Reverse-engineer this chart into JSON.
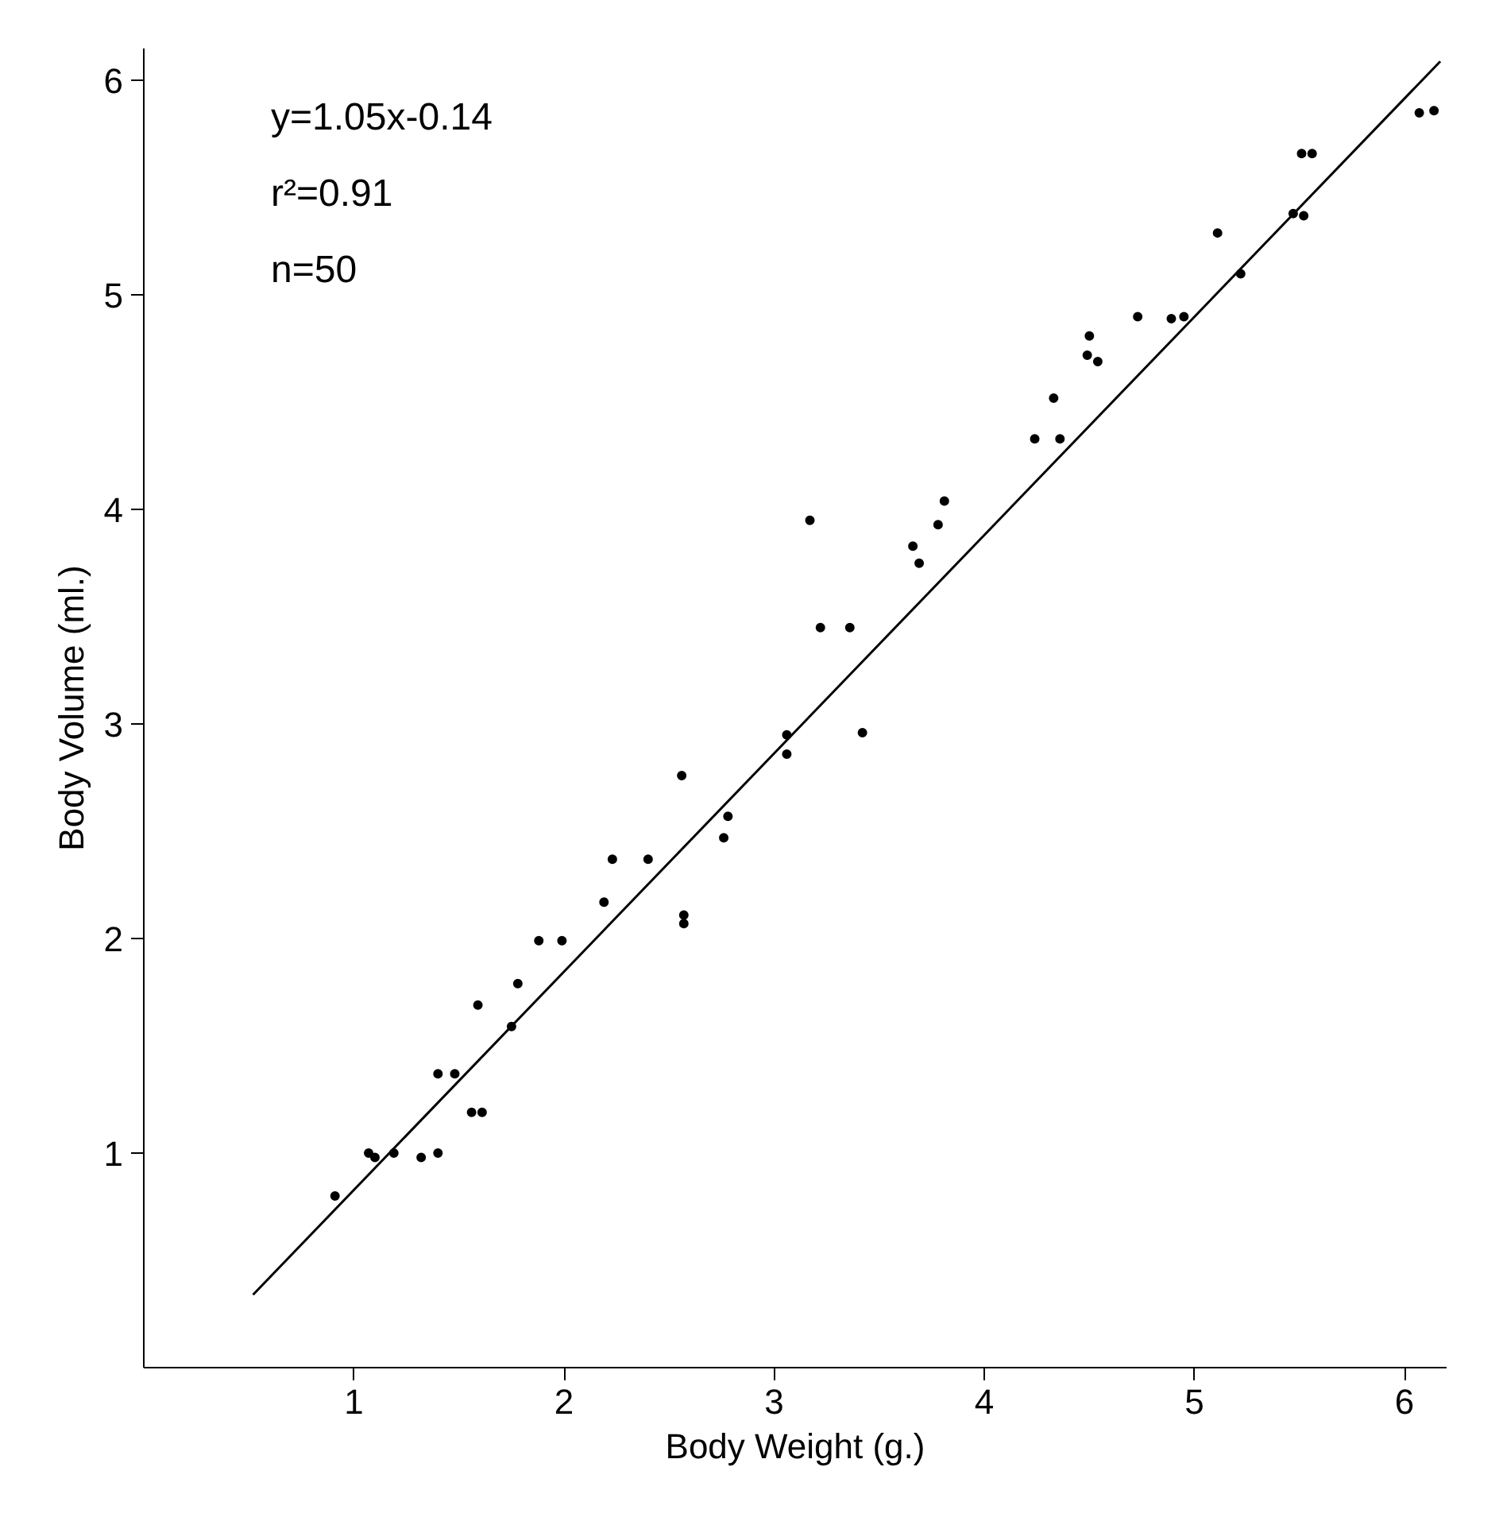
{
  "chart_data": {
    "type": "scatter",
    "xlabel": "Body Weight (g.)",
    "ylabel": "Body Volume (ml.)",
    "annotations": [
      "y=1.05x-0.14",
      "r²=0.91",
      "n=50"
    ],
    "xlim": [
      0,
      6.2
    ],
    "ylim": [
      0,
      6.15
    ],
    "xticks": [
      1,
      2,
      3,
      4,
      5,
      6
    ],
    "yticks": [
      1,
      2,
      3,
      4,
      5,
      6
    ],
    "grid": false,
    "marker": "circle",
    "series": [
      {
        "color": "#000000",
        "x": [
          0.91,
          1.07,
          1.1,
          1.19,
          1.32,
          1.4,
          1.56,
          1.61,
          1.4,
          1.48,
          1.59,
          1.75,
          1.78,
          1.88,
          1.99,
          2.19,
          2.23,
          2.4,
          2.56,
          2.57,
          2.57,
          2.78,
          2.76,
          3.06,
          3.06,
          3.17,
          3.22,
          3.36,
          3.42,
          3.66,
          3.69,
          3.78,
          3.81,
          4.24,
          4.36,
          4.33,
          4.49,
          4.5,
          4.54,
          4.73,
          4.89,
          4.95,
          5.11,
          5.22,
          5.47,
          5.52,
          5.51,
          5.56,
          6.07,
          6.14
        ],
        "values": [
          0.8,
          1.0,
          0.98,
          1.0,
          0.98,
          1.0,
          1.19,
          1.19,
          1.37,
          1.37,
          1.69,
          1.59,
          1.79,
          1.99,
          1.99,
          2.17,
          2.37,
          2.37,
          2.76,
          2.11,
          2.07,
          2.57,
          2.47,
          2.95,
          2.86,
          3.95,
          3.45,
          3.45,
          2.96,
          3.83,
          3.75,
          3.93,
          4.04,
          4.33,
          4.33,
          4.52,
          4.72,
          4.81,
          4.69,
          4.9,
          4.89,
          4.9,
          5.29,
          5.1,
          5.38,
          5.37,
          5.66,
          5.66,
          5.85,
          5.86
        ]
      },
      {
        "type": "line",
        "color": "#000000",
        "line_style": "solid",
        "marker": "none",
        "x": [
          0.52,
          6.17
        ],
        "values": [
          0.34,
          6.09
        ]
      }
    ]
  }
}
